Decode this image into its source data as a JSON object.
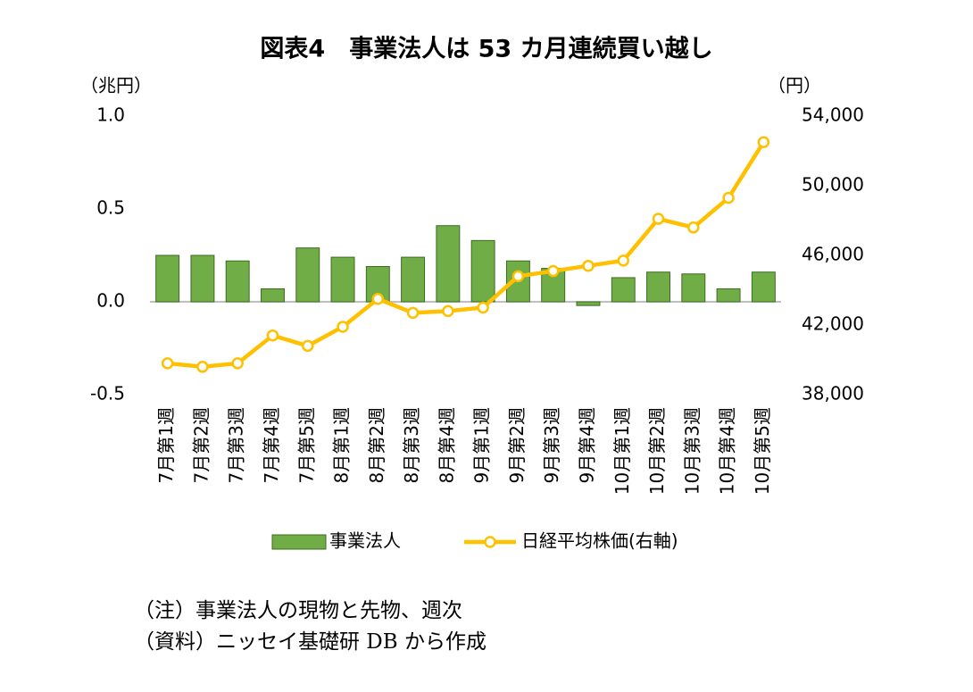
{
  "chart_data": {
    "type": "bar-line",
    "title": "図表4　事業法人は 53 カ月連続買い越し",
    "y_label": "（兆円）",
    "y2_label": "（円）",
    "categories": [
      "7月第1週",
      "7月第2週",
      "7月第3週",
      "7月第4週",
      "7月第5週",
      "8月第1週",
      "8月第2週",
      "8月第3週",
      "8月第4週",
      "9月第1週",
      "9月第2週",
      "9月第3週",
      "9月第4週",
      "10月第1週",
      "10月第2週",
      "10月第3週",
      "10月第4週",
      "10月第5週"
    ],
    "series": [
      {
        "name": "事業法人",
        "type": "bar",
        "color": "#70ad47",
        "values": [
          0.25,
          0.25,
          0.22,
          0.07,
          0.29,
          0.24,
          0.19,
          0.24,
          0.41,
          0.33,
          0.22,
          0.18,
          -0.02,
          0.13,
          0.16,
          0.15,
          0.07,
          0.16
        ]
      },
      {
        "name": "日経平均株価(右軸)",
        "type": "line",
        "axis": "y2",
        "color": "#ffc000",
        "values": [
          39800,
          39600,
          39800,
          41400,
          40800,
          41900,
          43500,
          42700,
          42800,
          43000,
          44800,
          45100,
          45400,
          45700,
          48100,
          47600,
          49300,
          52500
        ]
      }
    ],
    "ylim": [
      -0.5,
      1
    ],
    "yticks": [
      -0.5,
      {
        "value": 0,
        "label": "0.0"
      },
      0.5,
      {
        "value": 1,
        "label": "1.0"
      }
    ],
    "y2lim": [
      38000,
      54000
    ],
    "y2ticks": [
      {
        "value": 38000,
        "label": "38,000"
      },
      {
        "value": 42000,
        "label": "42,000"
      },
      {
        "value": 46000,
        "label": "46,000"
      },
      {
        "value": 50000,
        "label": "50,000"
      },
      {
        "value": 54000,
        "label": "54,000"
      }
    ],
    "grid": false,
    "legend": "bottom",
    "notes": [
      "（注）事業法人の現物と先物、週次",
      "（資料）ニッセイ基礎研 DB から作成"
    ]
  }
}
